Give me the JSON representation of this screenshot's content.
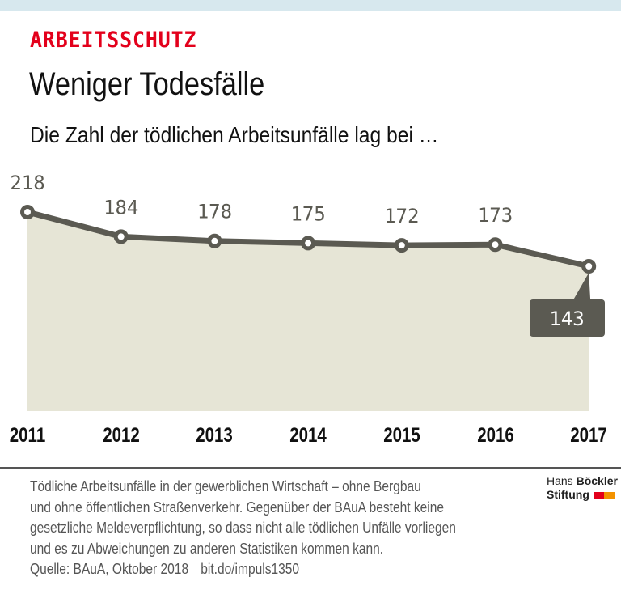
{
  "header": {
    "kicker": "ARBEITSSCHUTZ",
    "title": "Weniger Todesfälle",
    "subtitle": "Die Zahl der tödlichen Arbeitsunfälle lag bei …"
  },
  "colors": {
    "kicker": "#e3001b",
    "line": "#5b5a52",
    "fill": "#e6e5d6",
    "callout": "#5b5a52",
    "topbar": "#d7e8ee",
    "logo_red": "#e3001b",
    "logo_orange": "#f39200"
  },
  "chart_data": {
    "type": "area",
    "title": "Weniger Todesfälle",
    "subtitle": "Die Zahl der tödlichen Arbeitsunfälle lag bei …",
    "categories": [
      "2011",
      "2012",
      "2013",
      "2014",
      "2015",
      "2016",
      "2017"
    ],
    "values": [
      218,
      184,
      178,
      175,
      172,
      173,
      143
    ],
    "labels": [
      "218",
      "184",
      "178",
      "175",
      "172",
      "173",
      "143"
    ],
    "highlight": {
      "category": "2017",
      "value": 143,
      "style": "callout box"
    },
    "xlabel": "",
    "ylabel": "",
    "grid": false,
    "legend": null
  },
  "footer": {
    "note_lines": [
      "Tödliche Arbeitsunfälle in der gewerblichen Wirtschaft – ohne Bergbau",
      "und ohne öffentlichen Straßenverkehr. Gegenüber der BAuA besteht keine",
      "gesetzliche Meldeverpflichtung, so dass nicht alle tödlichen Unfälle vorliegen",
      "und es zu Abweichungen zu anderen Statistiken kommen kann."
    ],
    "source": "Quelle: BAuA, Oktober 2018",
    "link": "bit.do/impuls1350"
  },
  "logo": {
    "line1_light": "Hans",
    "line1_bold": "Böckler",
    "line2": "Stiftung"
  }
}
